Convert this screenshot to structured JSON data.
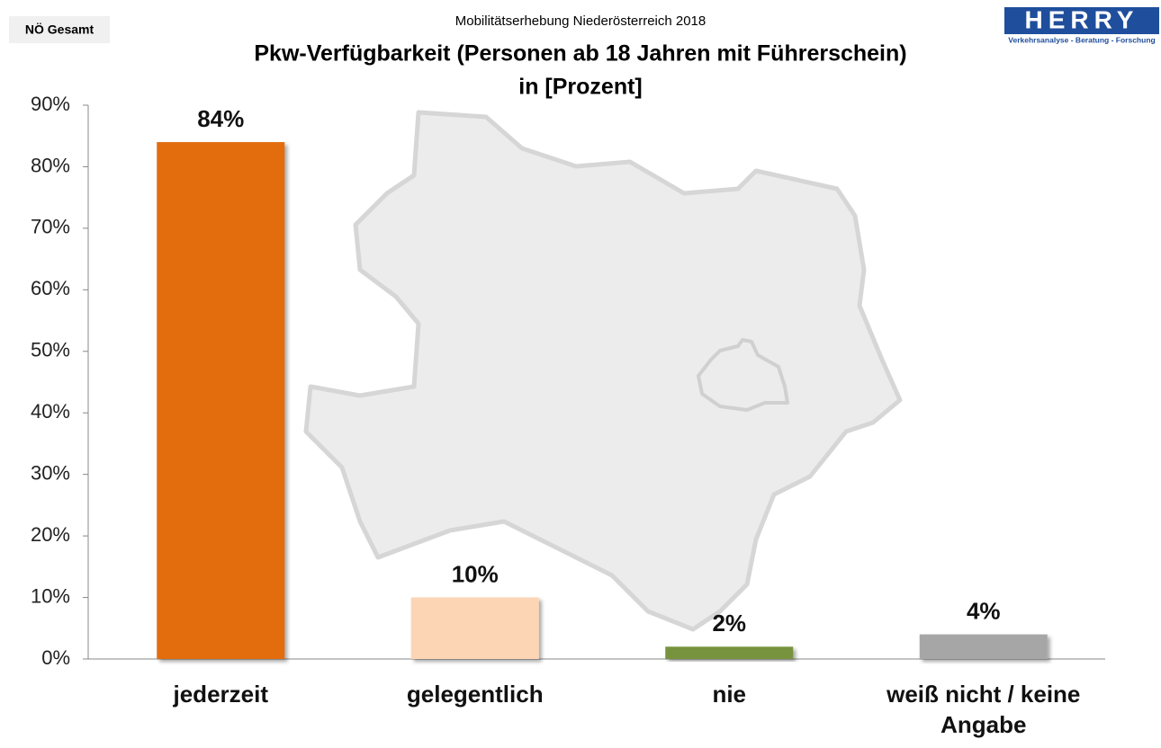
{
  "badge": "NÖ Gesamt",
  "logo": {
    "name": "HERRY",
    "tagline": "Verkehrsanalyse - Beratung - Forschung"
  },
  "chart_data": {
    "type": "bar",
    "subtitle": "Mobilitätserhebung Niederösterreich 2018",
    "title": [
      "Pkw-Verfügbarkeit (Personen ab 18 Jahren mit Führerschein)",
      "in [Prozent]"
    ],
    "categories": [
      "jederzeit",
      "gelegentlich",
      "nie",
      "weiß nicht / keine Angabe"
    ],
    "values": [
      84,
      10,
      2,
      4
    ],
    "value_labels": [
      "84%",
      "10%",
      "2%",
      "4%"
    ],
    "colors": [
      "#e36c09",
      "#fcd5b5",
      "#77933c",
      "#a6a6a6"
    ],
    "ylim": [
      0,
      90
    ],
    "yticks": [
      {
        "value": 0,
        "label": "0%"
      },
      {
        "value": 10,
        "label": "10%"
      },
      {
        "value": 20,
        "label": "20%"
      },
      {
        "value": 30,
        "label": "30%"
      },
      {
        "value": 40,
        "label": "40%"
      },
      {
        "value": 50,
        "label": "50%"
      },
      {
        "value": 60,
        "label": "60%"
      },
      {
        "value": 70,
        "label": "70%"
      },
      {
        "value": 80,
        "label": "80%"
      },
      {
        "value": 90,
        "label": "90%"
      }
    ],
    "grid": false
  }
}
